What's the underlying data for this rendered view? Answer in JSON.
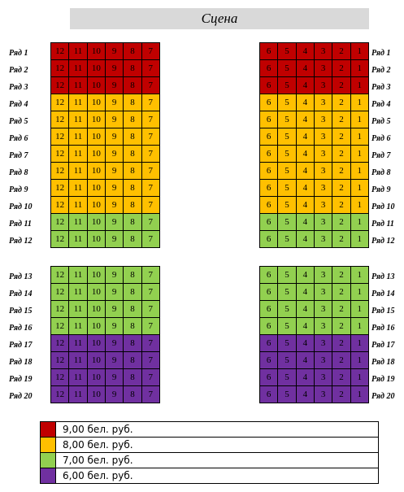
{
  "stage": {
    "label": "Сцена"
  },
  "seats": {
    "left_numbers": [
      "12",
      "11",
      "10",
      "9",
      "8",
      "7"
    ],
    "right_numbers": [
      "6",
      "5",
      "4",
      "3",
      "2",
      "1"
    ]
  },
  "rows": [
    {
      "label": "Ряд 1",
      "tier": "red"
    },
    {
      "label": "Ряд 2",
      "tier": "red"
    },
    {
      "label": "Ряд 3",
      "tier": "red"
    },
    {
      "label": "Ряд 4",
      "tier": "orange"
    },
    {
      "label": "Ряд 5",
      "tier": "orange"
    },
    {
      "label": "Ряд 6",
      "tier": "orange"
    },
    {
      "label": "Ряд 7",
      "tier": "orange"
    },
    {
      "label": "Ряд 8",
      "tier": "orange"
    },
    {
      "label": "Ряд 9",
      "tier": "orange"
    },
    {
      "label": "Ряд 10",
      "tier": "orange"
    },
    {
      "label": "Ряд 11",
      "tier": "green"
    },
    {
      "label": "Ряд 12",
      "tier": "green"
    },
    {
      "label": "Ряд 13",
      "tier": "green"
    },
    {
      "label": "Ряд 14",
      "tier": "green"
    },
    {
      "label": "Ряд 15",
      "tier": "green"
    },
    {
      "label": "Ряд 16",
      "tier": "green"
    },
    {
      "label": "Ряд 17",
      "tier": "purple"
    },
    {
      "label": "Ряд 18",
      "tier": "purple"
    },
    {
      "label": "Ряд 19",
      "tier": "purple"
    },
    {
      "label": "Ряд 20",
      "tier": "purple"
    }
  ],
  "tiers": {
    "red": {
      "color": "#c00000"
    },
    "orange": {
      "color": "#ffc000"
    },
    "green": {
      "color": "#92d050"
    },
    "purple": {
      "color": "#7030a0"
    }
  },
  "legend": [
    {
      "tier": "red",
      "label": "9,00 бел. руб."
    },
    {
      "tier": "orange",
      "label": "8,00 бел. руб."
    },
    {
      "tier": "green",
      "label": "7,00 бел. руб."
    },
    {
      "tier": "purple",
      "label": "6,00 бел. руб."
    }
  ]
}
